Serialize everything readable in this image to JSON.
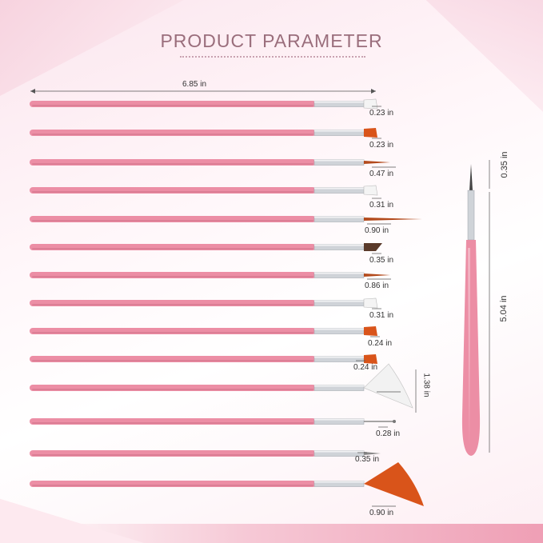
{
  "title": "PRODUCT  PARAMETER",
  "overall_length": "6.85 in",
  "brushes": [
    {
      "tip": "flat-white",
      "size": "0.23 in"
    },
    {
      "tip": "flat-orange",
      "size": "0.23 in"
    },
    {
      "tip": "liner",
      "size": "0.47 in"
    },
    {
      "tip": "flat-white",
      "size": "0.31 in"
    },
    {
      "tip": "long-liner",
      "size": "0.90 in"
    },
    {
      "tip": "angled-dark",
      "size": "0.35 in"
    },
    {
      "tip": "liner",
      "size": "0.86 in"
    },
    {
      "tip": "flat-white",
      "size": "0.31 in"
    },
    {
      "tip": "flat-orange",
      "size": "0.24 in"
    },
    {
      "tip": "flat-orange",
      "size": "0.24 in"
    },
    {
      "tip": "fan-white",
      "size": "1.38 in"
    },
    {
      "tip": "dotting",
      "size": "0.28 in"
    },
    {
      "tip": "liner-short",
      "size": "0.35 in"
    },
    {
      "tip": "fan-orange",
      "size": "0.90 in"
    }
  ],
  "side_brush": {
    "tip_length": "0.35 in",
    "total_length": "5.04 in"
  },
  "colors": {
    "handle": "#ec8ea5",
    "handle_shadow": "#c96a83",
    "ferrule": "#cfd3d8",
    "orange": "#d9541a",
    "title": "#9a6e7c"
  }
}
